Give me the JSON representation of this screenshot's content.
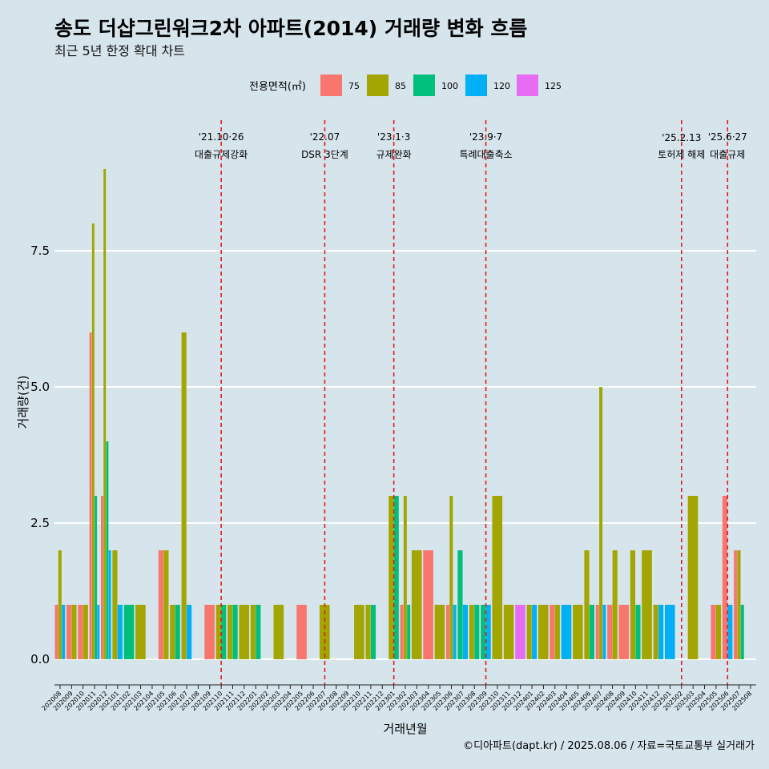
{
  "chart_data": {
    "type": "bar",
    "title": "송도 더샵그린워크2차 아파트(2014) 거래량 변화 흐름",
    "subtitle": "최근 5년 한정 확대 차트",
    "xlabel": "거래년월",
    "ylabel": "거래량(건)",
    "caption": "©디아파트(dapt.kr) / 2025.08.06 / 자료=국토교통부 실거래가",
    "legend": {
      "title": "전용면적(㎡)",
      "position": "top",
      "items": [
        {
          "name": "75",
          "color": "#f8766d"
        },
        {
          "name": "85",
          "color": "#a3a500"
        },
        {
          "name": "100",
          "color": "#00bf7d"
        },
        {
          "name": "120",
          "color": "#00b0f6"
        },
        {
          "name": "125",
          "color": "#e76bf3"
        }
      ]
    },
    "ylim": [
      -0.4,
      9.5
    ],
    "yticks": [
      "0.0",
      "2.5",
      "5.0",
      "7.5"
    ],
    "ytick_values": [
      0,
      2.5,
      5.0,
      7.5
    ],
    "grid": true,
    "categories": [
      "202008",
      "202009",
      "202010",
      "202011",
      "202012",
      "202101",
      "202102",
      "202103",
      "202104",
      "202105",
      "202106",
      "202107",
      "202108",
      "202109",
      "202110",
      "202111",
      "202112",
      "202201",
      "202202",
      "202203",
      "202204",
      "202205",
      "202206",
      "202207",
      "202208",
      "202209",
      "202210",
      "202211",
      "202212",
      "202301",
      "202302",
      "202303",
      "202304",
      "202305",
      "202306",
      "202307",
      "202308",
      "202309",
      "202310",
      "202311",
      "202312",
      "202401",
      "202402",
      "202403",
      "202404",
      "202405",
      "202406",
      "202407",
      "202408",
      "202409",
      "202410",
      "202411",
      "202412",
      "202501",
      "202502",
      "202503",
      "202504",
      "202505",
      "202506",
      "202507",
      "202508"
    ],
    "series": [
      {
        "name": "75",
        "values": [
          1,
          1,
          1,
          6,
          3,
          0,
          0,
          0,
          0,
          2,
          0,
          0,
          0,
          1,
          0,
          0,
          0,
          0,
          0,
          0,
          0,
          1,
          0,
          0,
          0,
          0,
          0,
          0,
          0,
          0,
          1,
          0,
          2,
          0,
          1,
          0,
          0,
          0,
          0,
          0,
          0,
          0,
          0,
          1,
          0,
          0,
          0,
          1,
          1,
          1,
          0,
          0,
          0,
          0,
          0,
          0,
          0,
          1,
          3,
          2,
          0
        ]
      },
      {
        "name": "85",
        "values": [
          2,
          1,
          1,
          8,
          9,
          2,
          0,
          1,
          0,
          2,
          1,
          6,
          0,
          0,
          1,
          1,
          1,
          1,
          0,
          1,
          0,
          0,
          0,
          1,
          0,
          0,
          1,
          1,
          0,
          3,
          3,
          2,
          0,
          1,
          3,
          0,
          1,
          0,
          3,
          1,
          0,
          1,
          1,
          1,
          0,
          1,
          2,
          5,
          2,
          0,
          2,
          2,
          1,
          0,
          0,
          3,
          0,
          1,
          0,
          2,
          0
        ]
      },
      {
        "name": "100",
        "values": [
          0,
          0,
          0,
          3,
          4,
          0,
          1,
          0,
          0,
          0,
          1,
          0,
          0,
          0,
          1,
          1,
          0,
          1,
          0,
          0,
          0,
          0,
          0,
          0,
          0,
          0,
          0,
          1,
          0,
          3,
          1,
          0,
          0,
          0,
          0,
          2,
          1,
          1,
          0,
          0,
          0,
          0,
          0,
          0,
          0,
          0,
          1,
          0,
          0,
          0,
          1,
          0,
          0,
          0,
          0,
          0,
          0,
          0,
          0,
          1,
          0
        ]
      },
      {
        "name": "120",
        "values": [
          1,
          0,
          0,
          1,
          2,
          1,
          0,
          0,
          0,
          0,
          0,
          1,
          0,
          0,
          0,
          0,
          0,
          0,
          0,
          0,
          0,
          0,
          0,
          0,
          0,
          0,
          0,
          0,
          0,
          0,
          0,
          0,
          0,
          0,
          1,
          1,
          0,
          1,
          0,
          0,
          0,
          1,
          0,
          0,
          1,
          0,
          0,
          1,
          0,
          0,
          0,
          0,
          1,
          1,
          0,
          0,
          0,
          0,
          1,
          0,
          0
        ]
      },
      {
        "name": "125",
        "values": [
          0,
          0,
          0,
          0,
          0,
          0,
          0,
          0,
          0,
          0,
          0,
          0,
          0,
          0,
          0,
          0,
          0,
          0,
          0,
          0,
          0,
          0,
          0,
          0,
          0,
          0,
          0,
          0,
          0,
          0,
          0,
          0,
          0,
          0,
          0,
          0,
          0,
          0,
          0,
          0,
          1,
          0,
          0,
          0,
          0,
          0,
          0,
          0,
          0,
          0,
          0,
          0,
          0,
          0,
          0,
          0,
          0,
          0,
          0,
          0,
          0
        ]
      }
    ],
    "events": [
      {
        "month": "202110",
        "date_label": "'21.10·26",
        "label": "대출규제강화"
      },
      {
        "month": "202207",
        "date_label": "'22.07",
        "label": "DSR 3단계"
      },
      {
        "month": "202301",
        "date_label": "'23.1·3",
        "label": "규제완화"
      },
      {
        "month": "202309",
        "date_label": "'23.9·7",
        "label": "특례대출축소"
      },
      {
        "month": "202502",
        "date_label": "'25.2.13",
        "label": "토허제 해제"
      },
      {
        "month": "202506",
        "date_label": "'25.6·27",
        "label": "대출규제"
      }
    ],
    "event_line_color": "#e41a1c"
  }
}
